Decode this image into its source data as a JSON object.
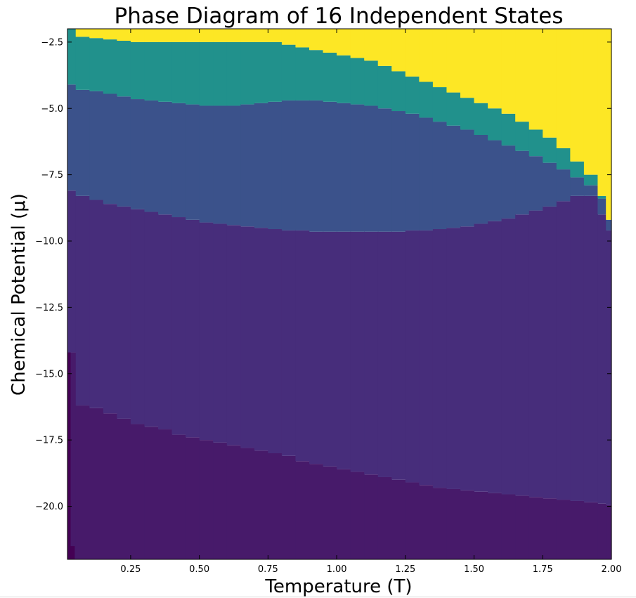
{
  "chart_data": {
    "type": "heatmap",
    "title": "Phase Diagram of 16 Independent States",
    "xlabel": "Temperature (T)",
    "ylabel": "Chemical Potential (μ)",
    "xlim": [
      0.02,
      2.0
    ],
    "ylim": [
      -22.0,
      -2.0
    ],
    "x_ticks": [
      0.25,
      0.5,
      0.75,
      1.0,
      1.25,
      1.5,
      1.75,
      2.0
    ],
    "x_tick_labels": [
      "0.25",
      "0.50",
      "0.75",
      "1.00",
      "1.25",
      "1.50",
      "1.75",
      "2.00"
    ],
    "y_ticks": [
      -2.5,
      -5.0,
      -7.5,
      -10.0,
      -12.5,
      -15.0,
      -17.5,
      -20.0
    ],
    "y_tick_labels": [
      "−2.5",
      "−5.0",
      "−7.5",
      "−10.0",
      "−12.5",
      "−15.0",
      "−17.5",
      "−20.0"
    ],
    "grid": false,
    "colormap": "viridis",
    "phase_colors": [
      "#440154",
      "#471a6a",
      "#472d7b",
      "#3b528b",
      "#21918c",
      "#fde725"
    ],
    "boundary_x": [
      0.02,
      0.05,
      0.1,
      0.15,
      0.2,
      0.25,
      0.3,
      0.35,
      0.4,
      0.45,
      0.5,
      0.55,
      0.6,
      0.65,
      0.7,
      0.75,
      0.8,
      0.85,
      0.9,
      0.95,
      1.0,
      1.05,
      1.1,
      1.15,
      1.2,
      1.25,
      1.3,
      1.35,
      1.4,
      1.45,
      1.5,
      1.55,
      1.6,
      1.65,
      1.7,
      1.75,
      1.8,
      1.85,
      1.9,
      1.95,
      1.98,
      2.0
    ],
    "boundaries": [
      {
        "lower_phase": 0,
        "upper_phase": 1,
        "mu": [
          -14.2,
          -16.2,
          -16.3,
          -16.5,
          -16.7,
          -16.9,
          -17.0,
          -17.1,
          -17.3,
          -17.4,
          -17.5,
          -17.6,
          -17.7,
          -17.8,
          -17.9,
          -18.0,
          -18.1,
          -18.3,
          -18.4,
          -18.5,
          -18.6,
          -18.7,
          -18.8,
          -18.9,
          -19.0,
          -19.1,
          -19.2,
          -19.3,
          -19.35,
          -19.4,
          -19.45,
          -19.5,
          -19.55,
          -19.6,
          -19.65,
          -19.7,
          -19.75,
          -19.8,
          -19.85,
          -19.9,
          -19.95,
          -20.0
        ]
      },
      {
        "lower_phase": 1,
        "upper_phase": 2,
        "mu": [
          -22.0,
          -22.0,
          -22.0,
          -22.0,
          -22.0,
          -22.0,
          -22.0,
          -22.0,
          -22.0,
          -22.0,
          -22.0,
          -22.0,
          -22.0,
          -22.0,
          -22.0,
          -22.0,
          -22.0,
          -22.0,
          -22.0,
          -22.0,
          -22.0,
          -22.0,
          -22.0,
          -22.0,
          -22.0,
          -22.0,
          -22.0,
          -22.0,
          -22.0,
          -22.0,
          -22.0,
          -22.0,
          -22.0,
          -22.0,
          -22.0,
          -22.0,
          -22.0,
          -22.0,
          -22.0,
          -22.0,
          -22.0,
          -22.0
        ]
      },
      {
        "lower_phase": 2,
        "upper_phase": 3,
        "mu": [
          -8.1,
          -8.3,
          -8.45,
          -8.6,
          -8.7,
          -8.8,
          -8.9,
          -9.0,
          -9.1,
          -9.2,
          -9.3,
          -9.35,
          -9.4,
          -9.45,
          -9.5,
          -9.55,
          -9.6,
          -9.6,
          -9.65,
          -9.65,
          -9.65,
          -9.65,
          -9.65,
          -9.65,
          -9.65,
          -9.6,
          -9.6,
          -9.55,
          -9.5,
          -9.45,
          -9.35,
          -9.25,
          -9.15,
          -9.0,
          -8.85,
          -8.7,
          -8.5,
          -8.3,
          -8.3,
          -9.0,
          -9.6,
          -9.9
        ]
      },
      {
        "lower_phase": 3,
        "upper_phase": 4,
        "mu": [
          -4.1,
          -4.3,
          -4.35,
          -4.45,
          -4.55,
          -4.65,
          -4.7,
          -4.75,
          -4.8,
          -4.85,
          -4.9,
          -4.9,
          -4.9,
          -4.85,
          -4.8,
          -4.75,
          -4.7,
          -4.7,
          -4.7,
          -4.75,
          -4.8,
          -4.85,
          -4.9,
          -5.0,
          -5.1,
          -5.2,
          -5.35,
          -5.5,
          -5.65,
          -5.8,
          -6.0,
          -6.2,
          -6.4,
          -6.6,
          -6.8,
          -7.05,
          -7.3,
          -7.6,
          -7.9,
          -8.4,
          -9.2,
          -9.9
        ]
      },
      {
        "lower_phase": 4,
        "upper_phase": 5,
        "mu": [
          -2.0,
          -2.3,
          -2.35,
          -2.4,
          -2.45,
          -2.5,
          -2.5,
          -2.5,
          -2.5,
          -2.5,
          -2.5,
          -2.5,
          -2.5,
          -2.5,
          -2.5,
          -2.5,
          -2.6,
          -2.7,
          -2.8,
          -2.9,
          -3.0,
          -3.1,
          -3.2,
          -3.4,
          -3.6,
          -3.8,
          -4.0,
          -4.2,
          -4.4,
          -4.6,
          -4.8,
          -5.0,
          -5.2,
          -5.5,
          -5.8,
          -6.1,
          -6.5,
          -7.0,
          -7.5,
          -8.3,
          -9.2,
          -9.9
        ]
      }
    ]
  }
}
